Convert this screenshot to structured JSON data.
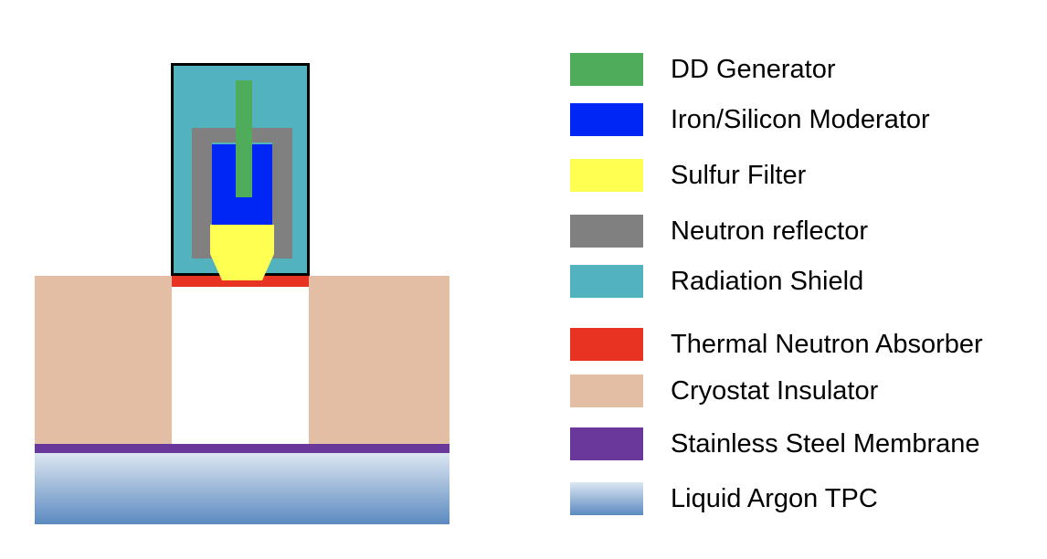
{
  "colors": {
    "dd_generator": "#4fac5b",
    "moderator": "#0026f5",
    "sulfur_filter": "#ffff52",
    "neutron_reflector": "#808080",
    "radiation_shield": "#52b2bd",
    "thermal_absorber": "#e83323",
    "cryostat_insulator": "#e3bea5",
    "membrane": "#6a389a",
    "tpc_top": "#dce6f1",
    "tpc_bottom": "#5b8ac0"
  },
  "legend": [
    {
      "key": "dd_generator",
      "label": "DD Generator"
    },
    {
      "key": "moderator",
      "label": "Iron/Silicon Moderator"
    },
    {
      "key": "sulfur_filter",
      "label": "Sulfur Filter"
    },
    {
      "key": "neutron_reflector",
      "label": "Neutron reflector"
    },
    {
      "key": "radiation_shield",
      "label": "Radiation Shield"
    },
    {
      "key": "thermal_absorber",
      "label": "Thermal Neutron Absorber"
    },
    {
      "key": "cryostat_insulator",
      "label": "Cryostat Insulator"
    },
    {
      "key": "membrane",
      "label": "Stainless Steel Membrane"
    },
    {
      "key": "tpc",
      "label": "Liquid Argon TPC"
    }
  ]
}
